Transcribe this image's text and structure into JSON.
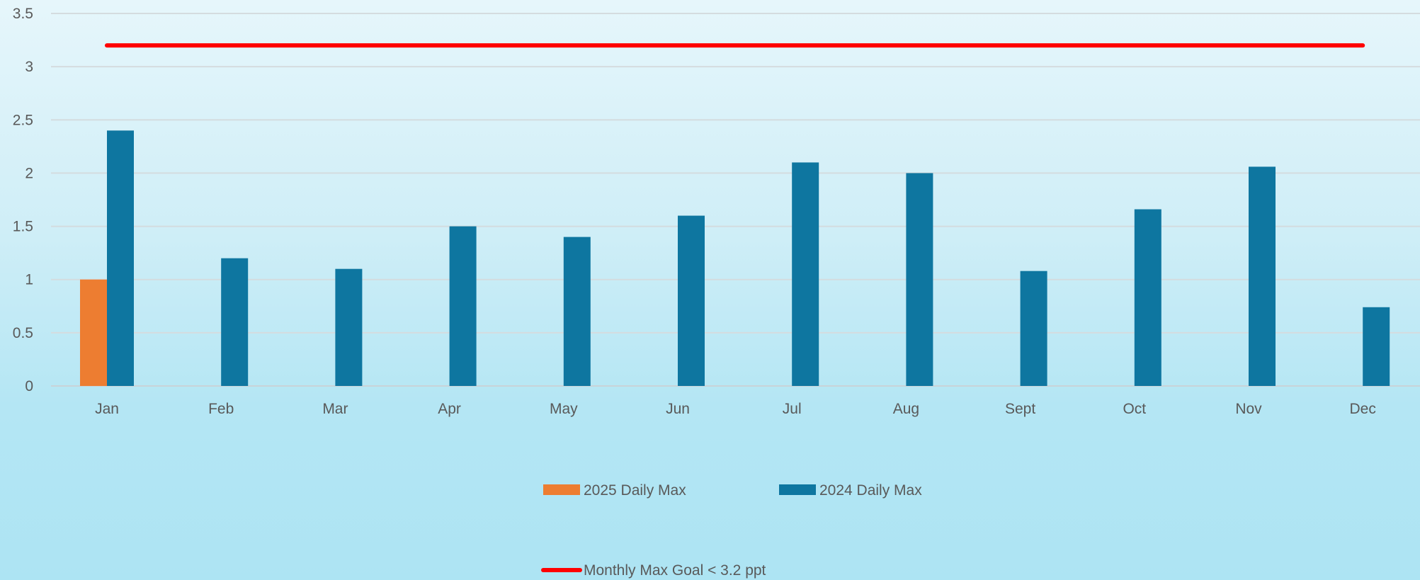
{
  "chart_data": {
    "type": "bar",
    "categories": [
      "Jan",
      "Feb",
      "Mar",
      "Apr",
      "May",
      "Jun",
      "Jul",
      "Aug",
      "Sept",
      "Oct",
      "Nov",
      "Dec"
    ],
    "series": [
      {
        "name": "2025 Daily Max",
        "color": "#ed7d31",
        "values": [
          1.0,
          null,
          null,
          null,
          null,
          null,
          null,
          null,
          null,
          null,
          null,
          null
        ]
      },
      {
        "name": "2024 Daily Max",
        "color": "#0e76a0",
        "values": [
          2.4,
          1.2,
          1.1,
          1.5,
          1.4,
          1.6,
          2.1,
          2.0,
          1.08,
          1.66,
          2.06,
          0.74
        ]
      }
    ],
    "goal_line": {
      "name": "Monthly Max Goal < 3.2 ppt",
      "value": 3.2,
      "color": "#ff0000"
    },
    "y_ticks": [
      "0",
      "0.5",
      "1",
      "1.5",
      "2",
      "2.5",
      "3",
      "3.5"
    ],
    "ylim": [
      0,
      3.5
    ],
    "title": "",
    "xlabel": "",
    "ylabel": "",
    "grid": true,
    "legend_position": "bottom"
  }
}
